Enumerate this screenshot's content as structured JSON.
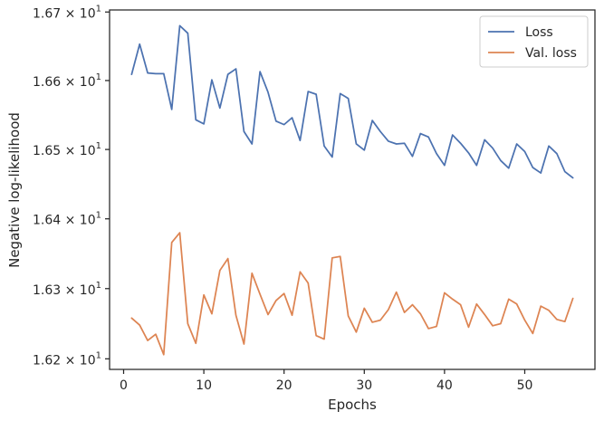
{
  "chart_data": {
    "type": "line",
    "xlabel": "Epochs",
    "ylabel": "Negative log-likelihood",
    "xlim": [
      -1.75,
      58.75
    ],
    "ylim": [
      16.185,
      16.703
    ],
    "y_scale": "log",
    "x_ticks": [
      {
        "value": 0,
        "label": "0"
      },
      {
        "value": 10,
        "label": "10"
      },
      {
        "value": 20,
        "label": "20"
      },
      {
        "value": 30,
        "label": "30"
      },
      {
        "value": 40,
        "label": "40"
      },
      {
        "value": 50,
        "label": "50"
      }
    ],
    "y_ticks": [
      {
        "value": 16.2,
        "mantissa": "1.62",
        "base": "10",
        "exp": "1"
      },
      {
        "value": 16.3,
        "mantissa": "1.63",
        "base": "10",
        "exp": "1"
      },
      {
        "value": 16.4,
        "mantissa": "1.64",
        "base": "10",
        "exp": "1"
      },
      {
        "value": 16.5,
        "mantissa": "1.65",
        "base": "10",
        "exp": "1"
      },
      {
        "value": 16.6,
        "mantissa": "1.66",
        "base": "10",
        "exp": "1"
      },
      {
        "value": 16.7,
        "mantissa": "1.67",
        "base": "10",
        "exp": "1"
      }
    ],
    "grid": false,
    "legend_position": "top-right",
    "x": [
      1,
      2,
      3,
      4,
      5,
      6,
      7,
      8,
      9,
      10,
      11,
      12,
      13,
      14,
      15,
      16,
      17,
      18,
      19,
      20,
      21,
      22,
      23,
      24,
      25,
      26,
      27,
      28,
      29,
      30,
      31,
      32,
      33,
      34,
      35,
      36,
      37,
      38,
      39,
      40,
      41,
      42,
      43,
      44,
      45,
      46,
      47,
      48,
      49,
      50,
      51,
      52,
      53,
      54,
      55,
      56
    ],
    "series": [
      {
        "name": "Loss",
        "color": "#4c72b0",
        "values": [
          16.609,
          16.653,
          16.611,
          16.61,
          16.61,
          16.558,
          16.68,
          16.669,
          16.543,
          16.537,
          16.601,
          16.56,
          16.609,
          16.617,
          16.526,
          16.508,
          16.613,
          16.583,
          16.541,
          16.536,
          16.546,
          16.513,
          16.584,
          16.58,
          16.505,
          16.489,
          16.581,
          16.574,
          16.508,
          16.499,
          16.542,
          16.526,
          16.512,
          16.508,
          16.509,
          16.49,
          16.523,
          16.518,
          16.494,
          16.477,
          16.521,
          16.509,
          16.495,
          16.477,
          16.514,
          16.502,
          16.484,
          16.473,
          16.508,
          16.497,
          16.474,
          16.466,
          16.505,
          16.494,
          16.468,
          16.459
        ]
      },
      {
        "name": "Val. loss",
        "color": "#dd8452",
        "values": [
          16.258,
          16.248,
          16.226,
          16.235,
          16.206,
          16.366,
          16.38,
          16.25,
          16.222,
          16.291,
          16.264,
          16.326,
          16.343,
          16.262,
          16.221,
          16.322,
          16.292,
          16.263,
          16.283,
          16.293,
          16.262,
          16.324,
          16.308,
          16.233,
          16.228,
          16.344,
          16.346,
          16.261,
          16.238,
          16.272,
          16.252,
          16.255,
          16.27,
          16.295,
          16.266,
          16.277,
          16.264,
          16.243,
          16.246,
          16.294,
          16.285,
          16.277,
          16.245,
          16.278,
          16.263,
          16.247,
          16.25,
          16.285,
          16.278,
          16.255,
          16.236,
          16.275,
          16.269,
          16.256,
          16.253,
          16.286
        ]
      }
    ]
  }
}
